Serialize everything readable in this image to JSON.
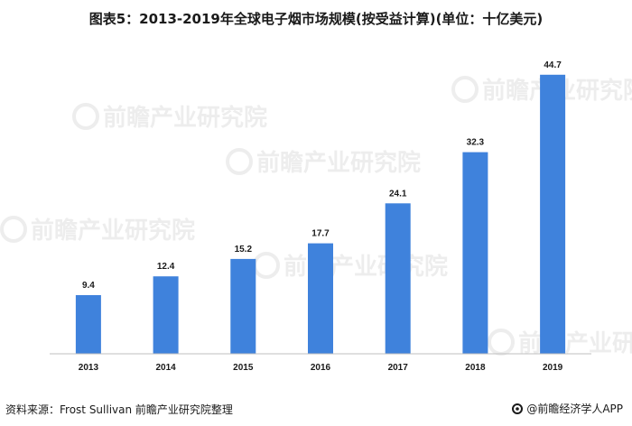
{
  "title": "图表5：2013-2019年全球电子烟市场规模(按受益计算)(单位：十亿美元)",
  "source": "资料来源：Frost Sullivan 前瞻产业研究院整理",
  "brand": "@前瞻经济学人APP",
  "watermark_text": "前瞻产业研究院",
  "colors": {
    "bar": "#3f82dc",
    "axis": "#bfbfbf",
    "text": "#1a1a1a"
  },
  "chart_data": {
    "type": "bar",
    "title": "图表5：2013-2019年全球电子烟市场规模(按受益计算)(单位：十亿美元)",
    "categories": [
      "2013",
      "2014",
      "2015",
      "2016",
      "2017",
      "2018",
      "2019"
    ],
    "values": [
      9.4,
      12.4,
      15.2,
      17.7,
      24.1,
      32.3,
      44.7
    ],
    "value_labels": [
      "9.4",
      "12.4",
      "15.2",
      "17.7",
      "24.1",
      "32.3",
      "44.7"
    ],
    "xlabel": "",
    "ylabel": "",
    "ylim": [
      0,
      48
    ],
    "grid": false,
    "legend": "none"
  }
}
